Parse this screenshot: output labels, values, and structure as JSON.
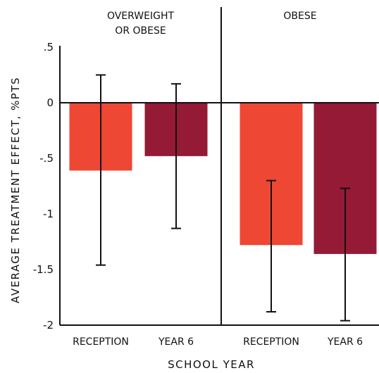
{
  "chart_data": {
    "type": "bar",
    "ylabel": "AVERAGE TREATMENT EFFECT, %PTS",
    "xlabel": "SCHOOL YEAR",
    "ylim": [
      -2,
      0.5
    ],
    "yticks": [
      ".5",
      "0",
      "-.5",
      "-1",
      "-1.5",
      "-2"
    ],
    "ytick_values": [
      0.5,
      0,
      -0.5,
      -1,
      -1.5,
      -2
    ],
    "grid": false,
    "colors": {
      "reception": "#ee4734",
      "year6": "#941a35"
    },
    "panels": [
      {
        "title_lines": [
          "OVERWEIGHT",
          "OR OBESE"
        ],
        "bars": [
          {
            "category": "RECEPTION",
            "value": -0.61,
            "ci_low": -1.46,
            "ci_high": 0.25,
            "color": "#ee4734"
          },
          {
            "category": "YEAR 6",
            "value": -0.48,
            "ci_low": -1.13,
            "ci_high": 0.17,
            "color": "#941a35"
          }
        ]
      },
      {
        "title_lines": [
          "OBESE"
        ],
        "bars": [
          {
            "category": "RECEPTION",
            "value": -1.28,
            "ci_low": -1.88,
            "ci_high": -0.7,
            "color": "#ee4734"
          },
          {
            "category": "YEAR 6",
            "value": -1.36,
            "ci_low": -1.96,
            "ci_high": -0.77,
            "color": "#941a35"
          }
        ]
      }
    ]
  }
}
